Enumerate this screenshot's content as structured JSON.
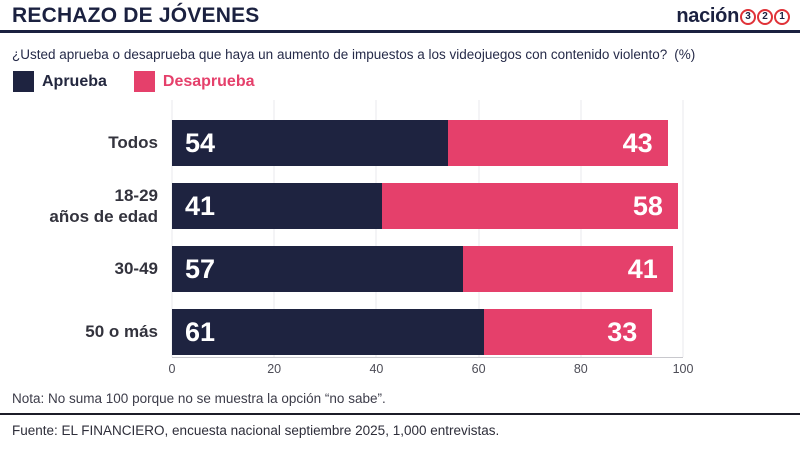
{
  "header": {
    "title": "RECHAZO DE JÓVENES",
    "brand": {
      "name": "nación",
      "badges": [
        "3",
        "2",
        "1"
      ]
    }
  },
  "subtitle": {
    "question": "¿Usted aprueba o desaprueba que haya un aumento de impuestos a los videojuegos con contenido violento?",
    "unit": "(%)"
  },
  "legend": [
    {
      "label": "Aprueba",
      "color": "#1e2340"
    },
    {
      "label": "Desaprueba",
      "color": "#e5406b"
    }
  ],
  "chart_data": {
    "type": "bar",
    "orientation": "horizontal",
    "stacked": true,
    "title": "RECHAZO DE JÓVENES",
    "subtitle": "¿Usted aprueba o desaprueba que haya un aumento de impuestos a los videojuegos con contenido violento? (%)",
    "categories": [
      "Todos",
      "18-29 años de edad",
      "30-49",
      "50 o más"
    ],
    "categories_display": [
      [
        "Todos"
      ],
      [
        "18-29",
        "años de edad"
      ],
      [
        "30-49"
      ],
      [
        "50 o más"
      ]
    ],
    "series": [
      {
        "name": "Aprueba",
        "color": "#1e2340",
        "values": [
          54,
          41,
          57,
          61
        ]
      },
      {
        "name": "Desaprueba",
        "color": "#e5406b",
        "values": [
          43,
          58,
          41,
          33
        ]
      }
    ],
    "xlim": [
      0,
      100
    ],
    "x_ticks": [
      0,
      20,
      40,
      60,
      80,
      100
    ],
    "grid": true,
    "legend_position": "top-left",
    "value_labels": "inside"
  },
  "footer": {
    "note": "Nota: No suma 100 porque no se muestra la opción “no sabe”.",
    "source": "Fuente: EL FINANCIERO, encuesta nacional septiembre 2025, 1,000 entrevistas."
  },
  "colors": {
    "approve_navy": "#1e2340",
    "disapprove_pink": "#e5406b",
    "badge_red": "#e03238",
    "rule_navy": "#1b2140"
  }
}
